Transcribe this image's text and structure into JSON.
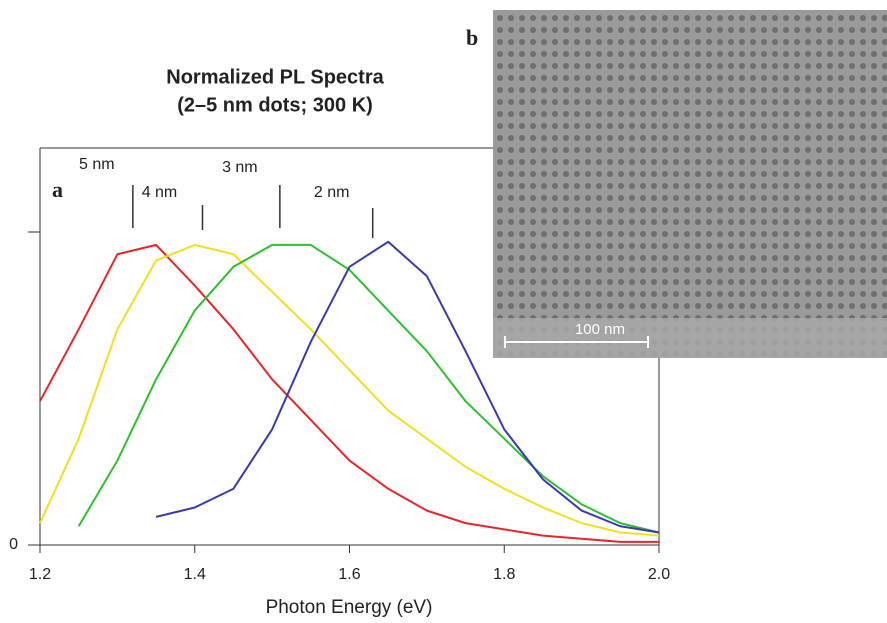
{
  "chart_data": {
    "type": "line",
    "title": [
      "Normalized PL Spectra",
      "(2–5 nm dots; 300 K)"
    ],
    "panel_labels": [
      "a",
      "b"
    ],
    "xlabel": "Photon Energy (eV)",
    "x": [
      1.2,
      1.25,
      1.3,
      1.35,
      1.4,
      1.45,
      1.5,
      1.55,
      1.6,
      1.65,
      1.7,
      1.75,
      1.8,
      1.85,
      1.9,
      1.95,
      2.0
    ],
    "series": [
      {
        "name": "5 nm",
        "color": "#e8262a",
        "values": [
          0.46,
          0.69,
          0.93,
          0.96,
          0.83,
          0.69,
          0.53,
          0.4,
          0.27,
          0.18,
          0.11,
          0.07,
          0.05,
          0.03,
          0.02,
          0.01,
          0.01
        ]
      },
      {
        "name": "4 nm",
        "color": "#f0e020",
        "values": [
          0.07,
          0.34,
          0.69,
          0.91,
          0.96,
          0.93,
          0.81,
          0.69,
          0.56,
          0.43,
          0.34,
          0.25,
          0.18,
          0.12,
          0.07,
          0.04,
          0.03
        ]
      },
      {
        "name": "3 nm",
        "color": "#2fbf2f",
        "values": [
          null,
          0.06,
          0.27,
          0.53,
          0.75,
          0.89,
          0.96,
          0.96,
          0.88,
          0.75,
          0.62,
          0.46,
          0.34,
          0.22,
          0.13,
          0.07,
          0.04
        ]
      },
      {
        "name": "2 nm",
        "color": "#3a3aaa",
        "values": [
          null,
          null,
          null,
          0.09,
          0.12,
          0.18,
          0.37,
          0.65,
          0.89,
          0.97,
          0.86,
          0.62,
          0.37,
          0.21,
          0.11,
          0.06,
          0.04
        ]
      }
    ],
    "annotations": [
      {
        "text": "5 nm",
        "x": 1.32
      },
      {
        "text": "4 nm",
        "x": 1.41
      },
      {
        "text": "3 nm",
        "x": 1.51
      },
      {
        "text": "2 nm",
        "x": 1.63
      }
    ],
    "xlim": [
      1.2,
      2.0
    ],
    "xticks": [
      {
        "value": 1.2,
        "label": "1.2"
      },
      {
        "value": 1.4,
        "label": "1.4"
      },
      {
        "value": 1.6,
        "label": "1.6"
      },
      {
        "value": 1.8,
        "label": "1.8"
      },
      {
        "value": 2.0,
        "label": "2.0"
      }
    ],
    "ylim": [
      0,
      1.27
    ],
    "yticks": [
      0
    ],
    "inset_scale_bar": "100 nm"
  }
}
